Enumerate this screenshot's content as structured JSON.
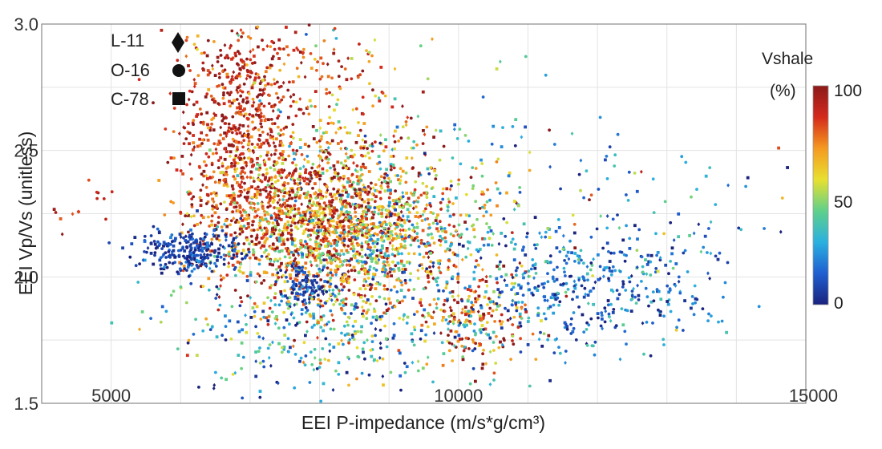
{
  "chart_data": {
    "type": "scatter",
    "title": "",
    "xlabel": "EEI P-impedance (m/s*g/cm³)",
    "ylabel": "EEI Vp/Vs (unitless)",
    "xlim": [
      4000,
      15000
    ],
    "ylim": [
      1.5,
      3.0
    ],
    "x_ticks": [
      5000,
      10000,
      15000
    ],
    "x_tick_labels": [
      "5000",
      "10000",
      "15000"
    ],
    "y_ticks": [
      1.5,
      2.0,
      2.5,
      3.0
    ],
    "y_tick_labels": [
      "1.5",
      "2.0",
      "2.5",
      "3.0"
    ],
    "grid": true,
    "legend": {
      "placement": "top-left",
      "entries": [
        {
          "label": "L-11",
          "marker": "diamond"
        },
        {
          "label": "O-16",
          "marker": "circle"
        },
        {
          "label": "C-78",
          "marker": "square"
        }
      ]
    },
    "colorbar": {
      "title_line1": "Vshale",
      "title_line2": "(%)",
      "min": 0,
      "max": 100,
      "tick_labels": [
        "100",
        "50",
        "0"
      ],
      "colors": [
        "#1a237e",
        "#1f5fd0",
        "#2ab0e0",
        "#5fd08a",
        "#e8e030",
        "#f59a20",
        "#d42a1c",
        "#8b1a1a"
      ]
    },
    "clusters": [
      {
        "x": 6800,
        "y": 2.58,
        "sx": 420,
        "sy": 0.22,
        "n": 650,
        "v": 88,
        "vs": 12
      },
      {
        "x": 7900,
        "y": 2.22,
        "sx": 750,
        "sy": 0.15,
        "n": 1200,
        "v": 78,
        "vs": 22
      },
      {
        "x": 8300,
        "y": 2.45,
        "sx": 700,
        "sy": 0.22,
        "n": 320,
        "v": 70,
        "vs": 25
      },
      {
        "x": 8700,
        "y": 2.08,
        "sx": 650,
        "sy": 0.14,
        "n": 500,
        "v": 55,
        "vs": 25
      },
      {
        "x": 6100,
        "y": 2.1,
        "sx": 380,
        "sy": 0.045,
        "n": 260,
        "v": 6,
        "vs": 8
      },
      {
        "x": 7800,
        "y": 1.97,
        "sx": 180,
        "sy": 0.04,
        "n": 90,
        "v": 6,
        "vs": 8
      },
      {
        "x": 9500,
        "y": 2.22,
        "sx": 800,
        "sy": 0.14,
        "n": 300,
        "v": 55,
        "vs": 28
      },
      {
        "x": 10300,
        "y": 1.82,
        "sx": 450,
        "sy": 0.08,
        "n": 180,
        "v": 75,
        "vs": 20
      },
      {
        "x": 11800,
        "y": 1.95,
        "sx": 900,
        "sy": 0.12,
        "n": 450,
        "v": 18,
        "vs": 14
      },
      {
        "x": 8200,
        "y": 1.78,
        "sx": 1300,
        "sy": 0.12,
        "n": 350,
        "v": 30,
        "vs": 22
      },
      {
        "x": 12500,
        "y": 2.3,
        "sx": 900,
        "sy": 0.15,
        "n": 70,
        "v": 22,
        "vs": 18
      },
      {
        "x": 10500,
        "y": 2.5,
        "sx": 900,
        "sy": 0.2,
        "n": 40,
        "v": 40,
        "vs": 25
      },
      {
        "x": 4600,
        "y": 2.3,
        "sx": 300,
        "sy": 0.08,
        "n": 14,
        "v": 90,
        "vs": 8
      },
      {
        "x": 7700,
        "y": 2.85,
        "sx": 600,
        "sy": 0.1,
        "n": 80,
        "v": 82,
        "vs": 12
      }
    ]
  }
}
